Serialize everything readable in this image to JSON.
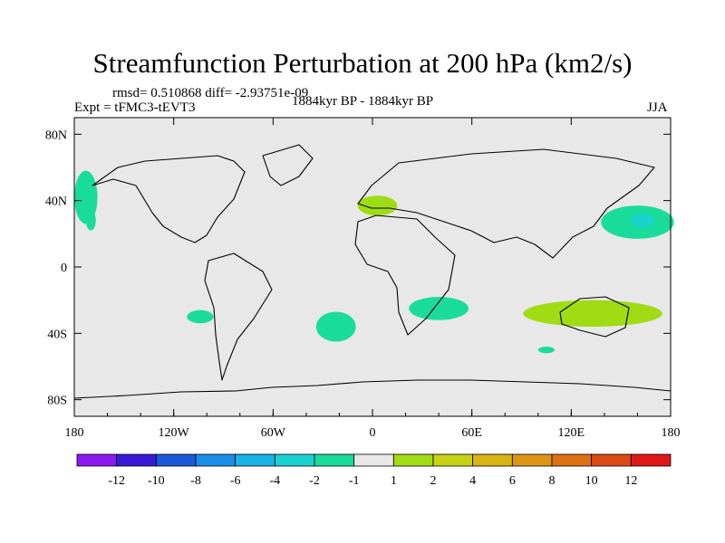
{
  "chart_data": {
    "type": "heatmap",
    "title": "Streamfunction Perturbation at 200 hPa (km2/s)",
    "stats_label": "rmsd= 0.510868 diff= -2.93751e-09",
    "left_label": "Expt = tFMC3-tEVT3",
    "center_label": "1884kyr BP - 1884kyr BP",
    "right_label": "JJA",
    "lon_range": [
      -180,
      180
    ],
    "lat_range": [
      -90,
      90
    ],
    "x_ticks": [
      {
        "value": -180,
        "label": "180"
      },
      {
        "value": -120,
        "label": "120W"
      },
      {
        "value": -60,
        "label": "60W"
      },
      {
        "value": 0,
        "label": "0"
      },
      {
        "value": 60,
        "label": "60E"
      },
      {
        "value": 120,
        "label": "120E"
      },
      {
        "value": 180,
        "label": "180"
      }
    ],
    "y_ticks": [
      {
        "value": 80,
        "label": "80N"
      },
      {
        "value": 40,
        "label": "40N"
      },
      {
        "value": 0,
        "label": "0"
      },
      {
        "value": -40,
        "label": "40S"
      },
      {
        "value": -80,
        "label": "80S"
      }
    ],
    "colorbar": {
      "colors": [
        "#8c1aee",
        "#3a1ad8",
        "#1a5ad8",
        "#1a8ee6",
        "#18b4e6",
        "#1ad2d2",
        "#1adc9a",
        "#e8e8e8",
        "#a0dc14",
        "#c8d214",
        "#d8b414",
        "#dc9614",
        "#dc7214",
        "#dc4a14",
        "#e01818"
      ],
      "labels": [
        "-12",
        "-10",
        "-8",
        "-6",
        "-4",
        "-2",
        "-1",
        "1",
        "2",
        "4",
        "6",
        "8",
        "10",
        "12"
      ]
    },
    "anomalies": [
      {
        "name": "north-pacific-east-negative",
        "lon": -173,
        "lat": 42,
        "rx": 7,
        "ry": 16,
        "value": -1.5
      },
      {
        "name": "north-pacific-east-negative-tail",
        "lon": -170,
        "lat": 28,
        "rx": 3,
        "ry": 6,
        "value": -1.5
      },
      {
        "name": "south-pacific-negative",
        "lon": -104,
        "lat": -30,
        "rx": 8,
        "ry": 4,
        "value": -1.5
      },
      {
        "name": "south-atlantic-negative",
        "lon": -22,
        "lat": -36,
        "rx": 12,
        "ry": 9,
        "value": -1.5
      },
      {
        "name": "mediterranean-positive",
        "lon": 3,
        "lat": 37,
        "rx": 12,
        "ry": 6,
        "value": 1.5
      },
      {
        "name": "indian-ocean-southwest-negative",
        "lon": 40,
        "lat": -25,
        "rx": 18,
        "ry": 7,
        "value": -1.5
      },
      {
        "name": "australia-positive",
        "lon": 133,
        "lat": -28,
        "rx": 42,
        "ry": 8,
        "value": 1.5
      },
      {
        "name": "south-indian-small-negative",
        "lon": 105,
        "lat": -50,
        "rx": 5,
        "ry": 2,
        "value": -1.5
      },
      {
        "name": "north-pacific-west-negative",
        "lon": 160,
        "lat": 27,
        "rx": 22,
        "ry": 10,
        "value": -1.5
      },
      {
        "name": "north-pacific-west-core",
        "lon": 163,
        "lat": 28,
        "rx": 7,
        "ry": 4,
        "value": -2.5
      }
    ]
  }
}
